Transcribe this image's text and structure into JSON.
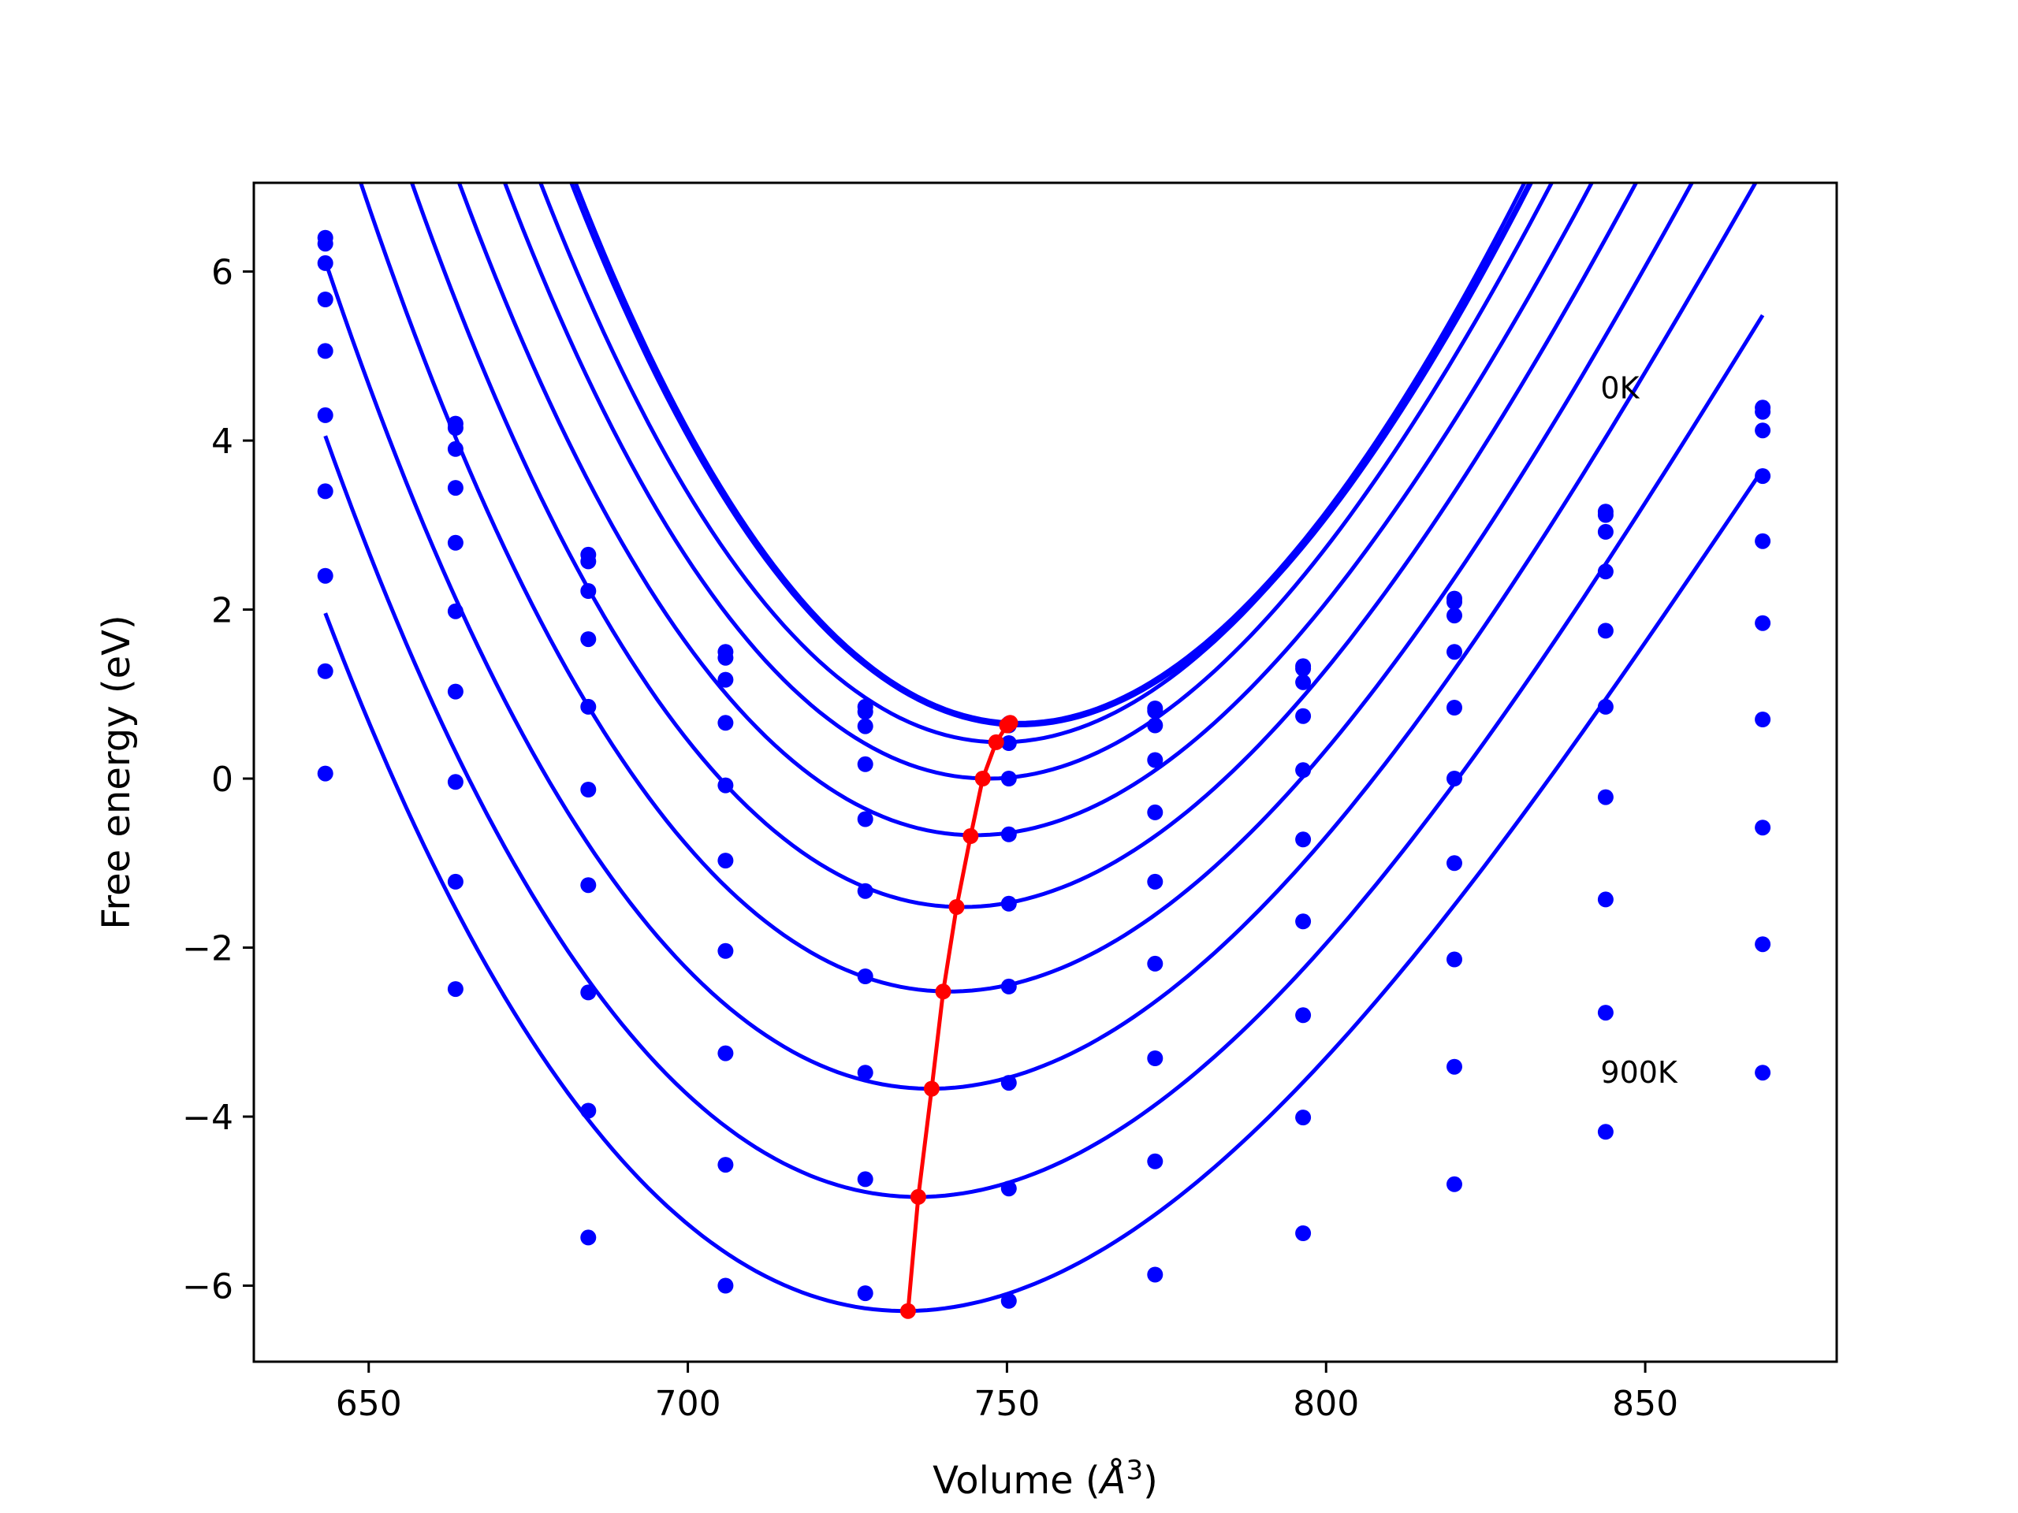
{
  "chart_data": {
    "type": "line",
    "title": "",
    "xlabel_prefix": "Volume (",
    "xlabel_unit": "Å",
    "xlabel_exp": "3",
    "xlabel_suffix": ")",
    "ylabel": "Free energy (eV)",
    "xlim": [
      632,
      880
    ],
    "ylim": [
      -6.9,
      7.05
    ],
    "xticks": [
      650,
      700,
      750,
      800,
      850
    ],
    "yticks": [
      -6,
      -4,
      -2,
      0,
      2,
      4,
      6
    ],
    "grid": false,
    "annotations": [
      {
        "text": "0K",
        "x": 843,
        "y": 4.5
      },
      {
        "text": "900K",
        "x": 843,
        "y": -3.6
      }
    ],
    "fit_curve_color": "#0000ff",
    "minimum_curve_color": "#ff0000",
    "volumes": [
      643.2,
      663.6,
      684.4,
      705.9,
      727.8,
      750.3,
      773.2,
      796.4,
      820.1,
      843.8,
      868.4
    ],
    "series": [
      {
        "temperature_index": 0,
        "points": [
          6.4,
          4.2,
          2.65,
          1.5,
          0.85,
          0.65,
          0.83,
          1.33,
          2.13,
          3.16,
          4.39
        ],
        "fit": {
          "a": 0.00118,
          "v0": 752.0,
          "e0": 0.66,
          "b": -2e-06
        }
      },
      {
        "temperature_index": 1,
        "points": [
          6.33,
          4.15,
          2.57,
          1.43,
          0.79,
          0.63,
          0.8,
          1.3,
          2.09,
          3.12,
          4.34
        ],
        "fit": {
          "a": 0.00116,
          "v0": 752.0,
          "e0": 0.63,
          "b": -2e-06
        }
      },
      {
        "temperature_index": 2,
        "points": [
          6.1,
          3.9,
          2.22,
          1.17,
          0.62,
          0.42,
          0.63,
          1.14,
          1.93,
          2.92,
          4.12
        ],
        "fit": {
          "a": 0.00113,
          "v0": 749.0,
          "e0": 0.43,
          "b": -2e-06
        }
      },
      {
        "temperature_index": 3,
        "points": [
          5.67,
          3.44,
          1.65,
          0.66,
          0.17,
          0.0,
          0.22,
          0.74,
          1.5,
          2.45,
          3.58
        ],
        "fit": {
          "a": 0.00108,
          "v0": 747.0,
          "e0": 0.0,
          "b": -2e-06
        }
      },
      {
        "temperature_index": 4,
        "points": [
          5.06,
          2.79,
          0.85,
          -0.08,
          -0.48,
          -0.66,
          -0.4,
          0.1,
          0.84,
          1.75,
          2.81
        ],
        "fit": {
          "a": 0.00102,
          "v0": 745.0,
          "e0": -0.67,
          "b": -2e-06
        }
      },
      {
        "temperature_index": 5,
        "points": [
          4.3,
          1.98,
          -0.13,
          -0.97,
          -1.33,
          -1.48,
          -1.22,
          -0.72,
          0.0,
          0.85,
          1.84
        ],
        "fit": {
          "a": 0.00098,
          "v0": 743.0,
          "e0": -1.52,
          "b": -2e-06
        }
      },
      {
        "temperature_index": 6,
        "points": [
          3.4,
          1.03,
          -1.26,
          -2.04,
          -2.34,
          -2.46,
          -2.19,
          -1.69,
          -1.0,
          -0.22,
          0.7
        ],
        "fit": {
          "a": 0.00094,
          "v0": 741.0,
          "e0": -2.52,
          "b": -2e-06
        }
      },
      {
        "temperature_index": 7,
        "points": [
          2.4,
          -0.04,
          -2.53,
          -3.25,
          -3.48,
          -3.6,
          -3.31,
          -2.8,
          -2.14,
          -1.43,
          -0.58
        ],
        "fit": {
          "a": 0.0009,
          "v0": 738.0,
          "e0": -3.67,
          "b": -2e-06
        }
      },
      {
        "temperature_index": 8,
        "points": [
          1.27,
          -1.22,
          -3.93,
          -4.57,
          -4.74,
          -4.85,
          -4.53,
          -4.01,
          -3.41,
          -2.77,
          -1.96
        ],
        "fit": {
          "a": 0.00086,
          "v0": 736.0,
          "e0": -4.95,
          "b": -2e-06
        }
      },
      {
        "temperature_index": 9,
        "points": [
          0.06,
          -2.49,
          -5.43,
          -6.0,
          -6.09,
          -6.18,
          -5.87,
          -5.38,
          -4.8,
          -4.18,
          -3.48
        ],
        "fit": {
          "a": 0.00082,
          "v0": 734.0,
          "e0": -6.3,
          "b": -2e-06
        }
      }
    ],
    "minimum_line": {
      "x": [
        750.5,
        750.0,
        748.3,
        746.2,
        744.3,
        742.1,
        740.0,
        738.2,
        736.1,
        734.5
      ],
      "y": [
        0.66,
        0.63,
        0.43,
        0.0,
        -0.68,
        -1.52,
        -2.52,
        -3.67,
        -4.95,
        -6.3
      ]
    }
  }
}
